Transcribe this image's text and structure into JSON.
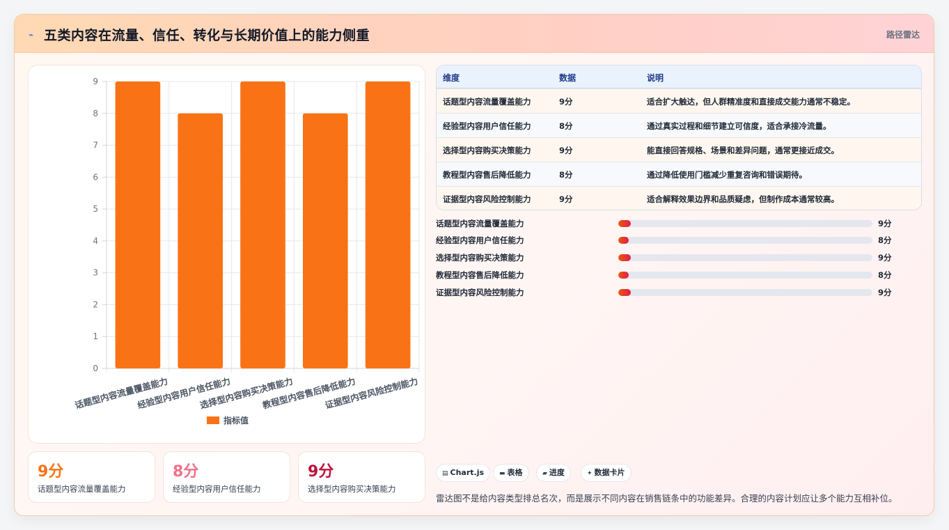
{
  "header": {
    "icon": "sparkle-icon",
    "title": "五类内容在流量、信任、转化与长期价值上的能力侧重",
    "tag": "路径雷达"
  },
  "chart_data": {
    "type": "bar",
    "categories": [
      "话题型内容流量覆盖能力",
      "经验型内容用户信任能力",
      "选择型内容购买决策能力",
      "教程型内容售后降低能力",
      "证据型内容风险控制能力"
    ],
    "series": [
      {
        "name": "指标值",
        "values": [
          9,
          8,
          9,
          8,
          9
        ]
      }
    ],
    "ylim": [
      0,
      9
    ],
    "yticks": [
      "0",
      "1",
      "2",
      "3",
      "4",
      "5",
      "6",
      "7",
      "8",
      "9"
    ],
    "legend_position": "bottom",
    "grid": true,
    "bar_color": "#f97316"
  },
  "stats": [
    {
      "value": "9分",
      "label": "话题型内容流量覆盖能力",
      "color": "#f97316"
    },
    {
      "value": "8分",
      "label": "经验型内容用户信任能力",
      "color": "#f0708a"
    },
    {
      "value": "9分",
      "label": "选择型内容购买决策能力",
      "color": "#be123c"
    }
  ],
  "table": {
    "headers": [
      "维度",
      "数据",
      "说明"
    ],
    "rows": [
      {
        "dim": "话题型内容流量覆盖能力",
        "data": "9分",
        "desc": "适合扩大触达，但人群精准度和直接成交能力通常不稳定。"
      },
      {
        "dim": "经验型内容用户信任能力",
        "data": "8分",
        "desc": "通过真实过程和细节建立可信度，适合承接冷流量。"
      },
      {
        "dim": "选择型内容购买决策能力",
        "data": "9分",
        "desc": "能直接回答规格、场景和差异问题，通常更接近成交。"
      },
      {
        "dim": "教程型内容售后降低能力",
        "data": "8分",
        "desc": "通过降低使用门槛减少重复咨询和错误期待。"
      },
      {
        "dim": "证据型内容风险控制能力",
        "data": "9分",
        "desc": "适合解释效果边界和品质疑虑，但制作成本通常较高。"
      }
    ]
  },
  "progress": [
    {
      "label": "话题型内容流量覆盖能力",
      "value_text": "9分",
      "fraction": 0.05
    },
    {
      "label": "经验型内容用户信任能力",
      "value_text": "8分",
      "fraction": 0.04
    },
    {
      "label": "选择型内容购买决策能力",
      "value_text": "9分",
      "fraction": 0.05
    },
    {
      "label": "教程型内容售后降低能力",
      "value_text": "8分",
      "fraction": 0.04
    },
    {
      "label": "证据型内容风险控制能力",
      "value_text": "9分",
      "fraction": 0.05
    }
  ],
  "chips": [
    {
      "icon": "chart-icon",
      "glyph": "▤",
      "label": "Chart.js"
    },
    {
      "icon": "table-icon",
      "glyph": "▬",
      "label": "表格"
    },
    {
      "icon": "progress-icon",
      "glyph": "▰",
      "label": "进度"
    },
    {
      "icon": "card-icon",
      "glyph": "✦",
      "label": "数据卡片"
    }
  ],
  "note": "雷达图不是给内容类型排总名次，而是展示不同内容在销售链条中的功能差异。合理的内容计划应让多个能力互相补位。"
}
